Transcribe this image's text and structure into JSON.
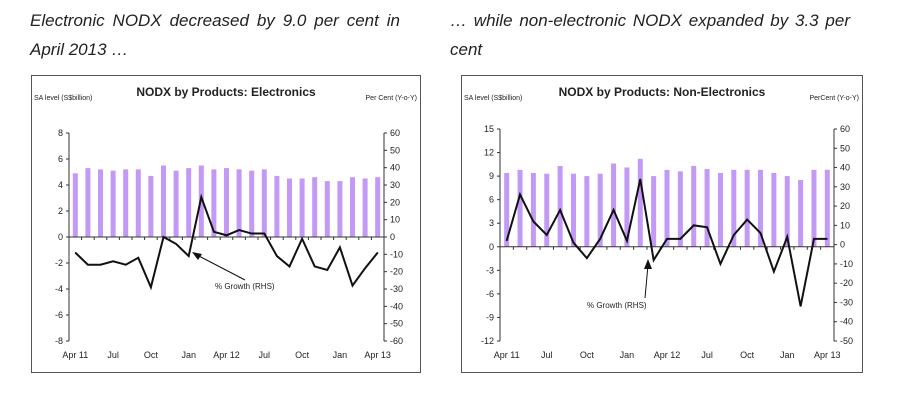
{
  "headlines": {
    "left": "Electronic NODX decreased by 9.0 per cent in April 2013 …",
    "right": "… while non-electronic NODX expanded by 3.3 per cent"
  },
  "colors": {
    "bar": "#c299f5",
    "line": "#111111"
  },
  "chart_data": [
    {
      "type": "bar+line",
      "title": "NODX by Products: Electronics",
      "ylabel_left": "SA level (S$billion)",
      "ylabel_right": "Per Cent (Y-o-Y)",
      "ylim_left": [
        -8,
        8
      ],
      "yticks_left": [
        -8,
        -6,
        -4,
        -2,
        0,
        2,
        4,
        6,
        8
      ],
      "ylim_right": [
        -60,
        60
      ],
      "yticks_right": [
        -60,
        -50,
        -40,
        -30,
        -20,
        -10,
        0,
        10,
        20,
        30,
        40,
        50,
        60
      ],
      "xtick_labels": [
        "Apr 11",
        "Jul",
        "Oct",
        "Jan",
        "Apr 12",
        "Jul",
        "Oct",
        "Jan",
        "Apr 13"
      ],
      "annotation": "% Growth (RHS)",
      "bars": [
        4.9,
        5.3,
        5.2,
        5.1,
        5.2,
        5.2,
        4.7,
        5.5,
        5.1,
        5.3,
        5.5,
        5.2,
        5.3,
        5.2,
        5.1,
        5.2,
        4.7,
        4.5,
        4.5,
        4.6,
        4.3,
        4.3,
        4.6,
        4.5,
        4.6
      ],
      "growth": [
        -9,
        -16,
        -16,
        -14,
        -16,
        -12,
        -29,
        0,
        -4,
        -11,
        23,
        3,
        1,
        4,
        2,
        2,
        -11,
        -17,
        -1,
        -17,
        -19,
        -6,
        -28,
        -18,
        -9
      ]
    },
    {
      "type": "bar+line",
      "title": "NODX by Products: Non-Electronics",
      "ylabel_left": "SA level (S$billion)",
      "ylabel_right": "PerCent (Y-o-Y)",
      "ylim_left": [
        -12,
        15
      ],
      "yticks_left": [
        -12,
        -9,
        -6,
        -3,
        0,
        3,
        6,
        9,
        12,
        15
      ],
      "ylim_right": [
        -50,
        60
      ],
      "yticks_right": [
        -50,
        -40,
        -30,
        -20,
        -10,
        0,
        10,
        20,
        30,
        40,
        50,
        60
      ],
      "xtick_labels": [
        "Apr 11",
        "Jul",
        "Oct",
        "Jan",
        "Apr 12",
        "Jul",
        "Oct",
        "Jan",
        "Apr 13"
      ],
      "annotation": "% Growth (RHS)",
      "bars": [
        9.4,
        9.8,
        9.4,
        9.3,
        10.3,
        9.3,
        9.0,
        9.3,
        10.6,
        10.1,
        11.2,
        9.0,
        9.8,
        9.6,
        10.3,
        9.9,
        9.4,
        9.8,
        9.8,
        9.8,
        9.4,
        9.0,
        8.5,
        9.8,
        9.8
      ],
      "growth": [
        2,
        26,
        12,
        5,
        18,
        1,
        -7,
        3,
        18,
        2,
        34,
        -8,
        3,
        3,
        10,
        9,
        -10,
        5,
        13,
        6,
        -14,
        4,
        -32,
        3,
        3
      ]
    }
  ]
}
